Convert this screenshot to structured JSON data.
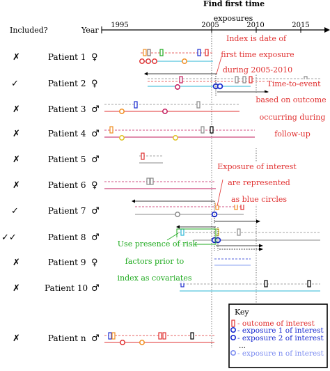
{
  "title": "Find first time",
  "headers": {
    "included": "Included?",
    "year": "Year"
  },
  "axis": {
    "ticks": [
      "1995",
      "2005",
      "2010",
      "2015"
    ],
    "exposures_label": "exposures",
    "years": [
      1995,
      2005,
      2010,
      2015
    ]
  },
  "patients": [
    {
      "name": "Patient 1",
      "included": "✗",
      "sex": "♀"
    },
    {
      "name": "Patient 2",
      "included": "✓",
      "sex": "♀"
    },
    {
      "name": "Patient 3",
      "included": "✗",
      "sex": "♂"
    },
    {
      "name": "Patient 4",
      "included": "✗",
      "sex": "♂"
    },
    {
      "name": "Patient 5",
      "included": "✗",
      "sex": "♂"
    },
    {
      "name": "Patient 6",
      "included": "✗",
      "sex": "♀"
    },
    {
      "name": "Patient 7",
      "included": "✓",
      "sex": "♂"
    },
    {
      "name": "Patient 8",
      "included": "✓✓",
      "sex": "♂"
    },
    {
      "name": "Patient 9",
      "included": "✗",
      "sex": "♀"
    },
    {
      "name": "Patient 10",
      "included": "✗",
      "sex": "♂"
    },
    {
      "name": "Patient n",
      "included": "✗",
      "sex": "♂"
    }
  ],
  "annotations": {
    "index_lines": [
      "Index is date of",
      "first time exposure",
      "during 2005-2010"
    ],
    "time_to_event": "Time-to-event",
    "based_lines": [
      "based on outcome",
      "occurring during",
      "follow-up"
    ],
    "exposure_lines": [
      "Exposure of interest",
      "are represented",
      "as blue circles"
    ],
    "risk_lines": [
      "Use presence of risk",
      "factors prior to",
      "index as covariates"
    ]
  },
  "key": {
    "title": "Key",
    "items": [
      {
        "label": "- outcome of interest",
        "color": "#e03030"
      },
      {
        "label": "- exposure 1 of interest",
        "color": "#1a2bd0"
      },
      {
        "label": "- exposure 2 of interest",
        "color": "#1a2bd0"
      },
      {
        "label": "...",
        "color": "#000000"
      },
      {
        "label": "- exposure n of interest",
        "color": "#7f8ff0"
      }
    ]
  },
  "colors": {
    "red": "#e03030",
    "blue": "#1a2bd0",
    "green": "#1faa1f",
    "cyan": "#29b6d6",
    "orange": "#f08c1e",
    "purple": "#c2185b",
    "gray": "#888888",
    "lightblue": "#8aa0f0"
  }
}
